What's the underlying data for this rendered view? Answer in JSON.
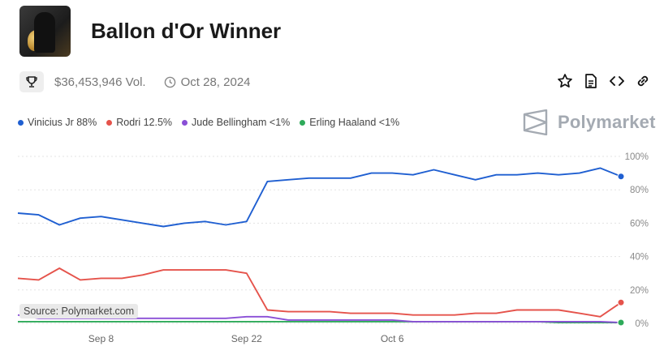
{
  "header": {
    "title": "Ballon d'Or Winner"
  },
  "meta": {
    "volume": "$36,453,946 Vol.",
    "date": "Oct 28, 2024"
  },
  "icons": {
    "trophy": "trophy-icon",
    "clock": "clock-icon",
    "star": "star-icon",
    "document": "document-icon",
    "embed": "code-icon",
    "link": "link-icon",
    "brand_logo": "polymarket-logo-icon"
  },
  "brand": {
    "name": "Polymarket"
  },
  "source": "Source: Polymarket.com",
  "chart_data": {
    "type": "line",
    "x_ticks": [
      "Sep 8",
      "Sep 22",
      "Oct 6"
    ],
    "y_ticks": [
      "100%",
      "80%",
      "60%",
      "40%",
      "20%",
      "0%"
    ],
    "ylim": [
      0,
      100
    ],
    "grid": true,
    "legend_placement": "top-left",
    "x_start": "Aug 31",
    "x_end": "Oct 28",
    "x": [
      "Aug 31",
      "Sep 2",
      "Sep 4",
      "Sep 6",
      "Sep 8",
      "Sep 10",
      "Sep 12",
      "Sep 14",
      "Sep 16",
      "Sep 18",
      "Sep 20",
      "Sep 22",
      "Sep 24",
      "Sep 26",
      "Sep 28",
      "Sep 30",
      "Oct 2",
      "Oct 4",
      "Oct 6",
      "Oct 8",
      "Oct 10",
      "Oct 12",
      "Oct 14",
      "Oct 16",
      "Oct 18",
      "Oct 20",
      "Oct 22",
      "Oct 24",
      "Oct 26",
      "Oct 28"
    ],
    "series": [
      {
        "name": "Vinicius Jr",
        "label": "Vinicius Jr 88%",
        "color": "#1f5fd1",
        "values": [
          66,
          65,
          59,
          63,
          64,
          62,
          60,
          58,
          60,
          61,
          59,
          61,
          85,
          86,
          87,
          87,
          87,
          90,
          90,
          89,
          92,
          89,
          86,
          89,
          89,
          90,
          89,
          90,
          93,
          88
        ]
      },
      {
        "name": "Rodri",
        "label": "Rodri 12.5%",
        "color": "#e5534b",
        "values": [
          27,
          26,
          33,
          26,
          27,
          27,
          29,
          32,
          32,
          32,
          32,
          30,
          8,
          7,
          7,
          7,
          6,
          6,
          6,
          5,
          5,
          5,
          6,
          6,
          8,
          8,
          8,
          6,
          4,
          12.5
        ]
      },
      {
        "name": "Jude Bellingham",
        "label": "Jude Bellingham <1%",
        "color": "#8a4fd6",
        "values": [
          5,
          3,
          3,
          3,
          3,
          3,
          3,
          3,
          3,
          3,
          3,
          4,
          4,
          2,
          2,
          2,
          2,
          2,
          2,
          1,
          1,
          1,
          1,
          1,
          1,
          1,
          1,
          1,
          1,
          0.5
        ]
      },
      {
        "name": "Erling Haaland",
        "label": "Erling Haaland <1%",
        "color": "#2eaa5a",
        "values": [
          1,
          1,
          1,
          1,
          1,
          1,
          1,
          1,
          1,
          1,
          1,
          1,
          1,
          1,
          1,
          1,
          1,
          1,
          1,
          1,
          1,
          1,
          1,
          1,
          1,
          1,
          0.5,
          0.5,
          0.5,
          0.5
        ]
      }
    ]
  }
}
